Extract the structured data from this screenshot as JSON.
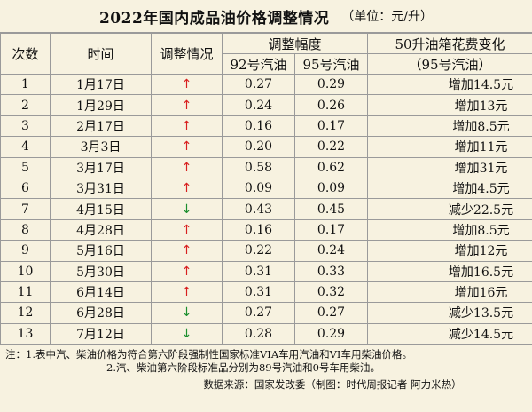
{
  "title": "2022年国内成品油价格调整情况",
  "unit": "（单位：元/升）",
  "headers": {
    "index": "次数",
    "date": "时间",
    "direction": "调整情况",
    "range": "调整幅度",
    "g92": "92号汽油",
    "g95": "95号汽油",
    "tank": "50升油箱花费变化",
    "tank_sub": "（95号汽油）"
  },
  "rows": [
    {
      "n": "1",
      "date": "1月17日",
      "dir": "↑",
      "up": true,
      "g92": "0.27",
      "g95": "0.29",
      "cost": "增加14.5元"
    },
    {
      "n": "2",
      "date": "1月29日",
      "dir": "↑",
      "up": true,
      "g92": "0.24",
      "g95": "0.26",
      "cost": "增加13元"
    },
    {
      "n": "3",
      "date": "2月17日",
      "dir": "↑",
      "up": true,
      "g92": "0.16",
      "g95": "0.17",
      "cost": "增加8.5元"
    },
    {
      "n": "4",
      "date": "3月3日",
      "dir": "↑",
      "up": true,
      "g92": "0.20",
      "g95": "0.22",
      "cost": "增加11元"
    },
    {
      "n": "5",
      "date": "3月17日",
      "dir": "↑",
      "up": true,
      "g92": "0.58",
      "g95": "0.62",
      "cost": "增加31元"
    },
    {
      "n": "6",
      "date": "3月31日",
      "dir": "↑",
      "up": true,
      "g92": "0.09",
      "g95": "0.09",
      "cost": "增加4.5元"
    },
    {
      "n": "7",
      "date": "4月15日",
      "dir": "↓",
      "up": false,
      "g92": "0.43",
      "g95": "0.45",
      "cost": "减少22.5元"
    },
    {
      "n": "8",
      "date": "4月28日",
      "dir": "↑",
      "up": true,
      "g92": "0.16",
      "g95": "0.17",
      "cost": "增加8.5元"
    },
    {
      "n": "9",
      "date": "5月16日",
      "dir": "↑",
      "up": true,
      "g92": "0.22",
      "g95": "0.24",
      "cost": "增加12元"
    },
    {
      "n": "10",
      "date": "5月30日",
      "dir": "↑",
      "up": true,
      "g92": "0.31",
      "g95": "0.33",
      "cost": "增加16.5元"
    },
    {
      "n": "11",
      "date": "6月14日",
      "dir": "↑",
      "up": true,
      "g92": "0.31",
      "g95": "0.32",
      "cost": "增加16元"
    },
    {
      "n": "12",
      "date": "6月28日",
      "dir": "↓",
      "up": false,
      "g92": "0.27",
      "g95": "0.27",
      "cost": "减少13.5元"
    },
    {
      "n": "13",
      "date": "7月12日",
      "dir": "↓",
      "up": false,
      "g92": "0.28",
      "g95": "0.29",
      "cost": "减少14.5元"
    }
  ],
  "notes": {
    "line1": "注：1.表中汽、柴油价格为符合第六阶段强制性国家标准VIA车用汽油和VI车用柴油价格。",
    "line2": "2.汽、柴油第六阶段标准品分别为89号汽油和0号车用柴油。"
  },
  "source": "数据来源：国家发改委（制图：时代周报记者 阿力米热）",
  "colors": {
    "up": "#d81f1f",
    "down": "#1c8f2e",
    "background": "#f7f2e0"
  }
}
